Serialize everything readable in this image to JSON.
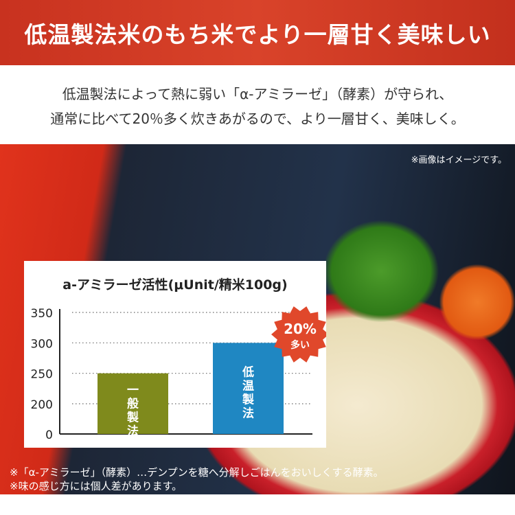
{
  "header": {
    "title": "低温製法米のもち米でより一層甘く美味しい"
  },
  "intro": {
    "line1": "低温製法によって熱に弱い「α-アミラーゼ」（酵素）が守られ、",
    "line2": "通常に比べて20％多く炊きあがるので、より一層甘く、美味しく。"
  },
  "photo": {
    "note": "※画像はイメージです。"
  },
  "chart_data": {
    "type": "bar",
    "title": "a-アミラーゼ活性(μUnit/精米100g)",
    "categories": [
      "一般製法",
      "低温製法"
    ],
    "values": [
      250,
      300
    ],
    "colors": [
      "#7f8a1c",
      "#1f87c2"
    ],
    "yticks": [
      0,
      200,
      250,
      300,
      350
    ],
    "ylim": [
      0,
      350
    ],
    "axis_break": [
      0,
      200
    ],
    "grid": "dotted horizontal",
    "badge": {
      "line1": "20%",
      "line2": "多い",
      "color": "#e0482b"
    }
  },
  "footnotes": [
    "※「α-アミラーゼ」（酵素）…デンプンを糖へ分解しごはんをおいしくする酵素。",
    "※味の感じ方には個人差があります。"
  ]
}
